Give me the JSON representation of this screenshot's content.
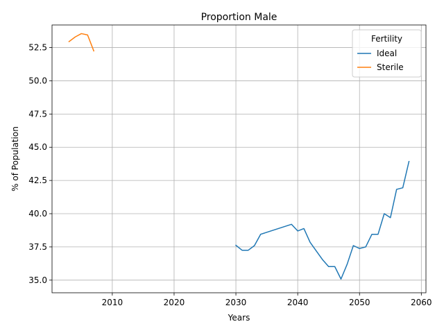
{
  "chart_data": {
    "type": "line",
    "title": "Proportion Male",
    "xlabel": "Years",
    "ylabel": "% of Population",
    "xlim": [
      2000.25,
      2060.75
    ],
    "ylim": [
      34.05,
      54.2
    ],
    "xticks": [
      2010,
      2020,
      2030,
      2040,
      2050,
      2060
    ],
    "xtick_labels": [
      "2010",
      "2020",
      "2030",
      "2040",
      "2050",
      "2060"
    ],
    "yticks": [
      35.0,
      37.5,
      40.0,
      42.5,
      45.0,
      47.5,
      50.0,
      52.5
    ],
    "ytick_labels": [
      "35.0",
      "37.5",
      "40.0",
      "42.5",
      "45.0",
      "47.5",
      "50.0",
      "52.5"
    ],
    "grid": true,
    "legend": {
      "title": "Fertility",
      "placement": "upper right"
    },
    "series": [
      {
        "name": "Ideal",
        "color": "#1f77b4",
        "x": [
          2030,
          2031,
          2032,
          2033,
          2034,
          2035,
          2036,
          2037,
          2038,
          2039,
          2040,
          2041,
          2042,
          2043,
          2044,
          2045,
          2046,
          2047,
          2048,
          2049,
          2050,
          2051,
          2052,
          2053,
          2054,
          2055,
          2056,
          2057,
          2058
        ],
        "values": [
          37.62,
          37.25,
          37.25,
          37.6,
          38.45,
          38.6,
          38.75,
          38.9,
          39.05,
          39.2,
          38.7,
          38.88,
          37.85,
          37.2,
          36.55,
          36.02,
          36.02,
          35.08,
          36.2,
          37.6,
          37.38,
          37.5,
          38.45,
          38.45,
          40.0,
          39.7,
          41.83,
          41.95,
          43.93
        ]
      },
      {
        "name": "Sterile",
        "color": "#ff7f0e",
        "x": [
          2003,
          2004,
          2005,
          2006,
          2007
        ],
        "values": [
          52.95,
          53.3,
          53.55,
          53.45,
          52.25
        ]
      }
    ]
  }
}
